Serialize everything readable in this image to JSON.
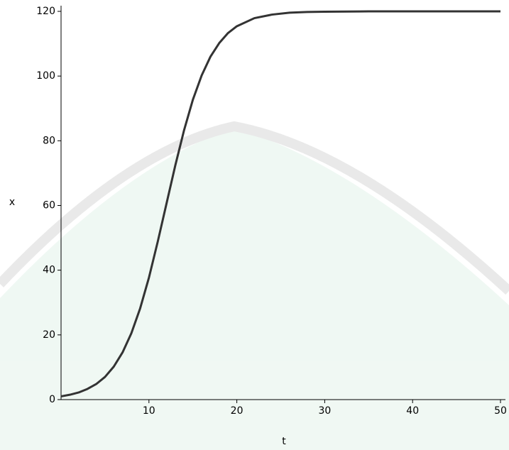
{
  "chart_data": {
    "type": "line",
    "x_label": "t",
    "y_label": "x",
    "x": [
      0,
      1,
      2,
      3,
      4,
      5,
      6,
      7,
      8,
      9,
      10,
      11,
      12,
      13,
      14,
      15,
      16,
      17,
      18,
      19,
      20,
      22,
      24,
      26,
      28,
      30,
      35,
      40,
      45,
      50
    ],
    "series": [
      {
        "color": "#333333",
        "values": [
          1.0,
          1.5,
          2.2,
          3.3,
          4.8,
          7.0,
          10.2,
          14.6,
          20.5,
          28.2,
          37.7,
          48.8,
          60.6,
          72.4,
          83.3,
          92.7,
          100.2,
          106.0,
          110.2,
          113.3,
          115.4,
          117.9,
          119.0,
          119.6,
          119.8,
          119.9,
          120,
          120,
          120,
          120
        ]
      }
    ],
    "xlim": [
      0,
      50
    ],
    "xticks": [
      10,
      20,
      30,
      40,
      50
    ],
    "ylim": [
      0,
      120
    ],
    "yticks": [
      0,
      20,
      40,
      60,
      80,
      100,
      120
    ]
  }
}
